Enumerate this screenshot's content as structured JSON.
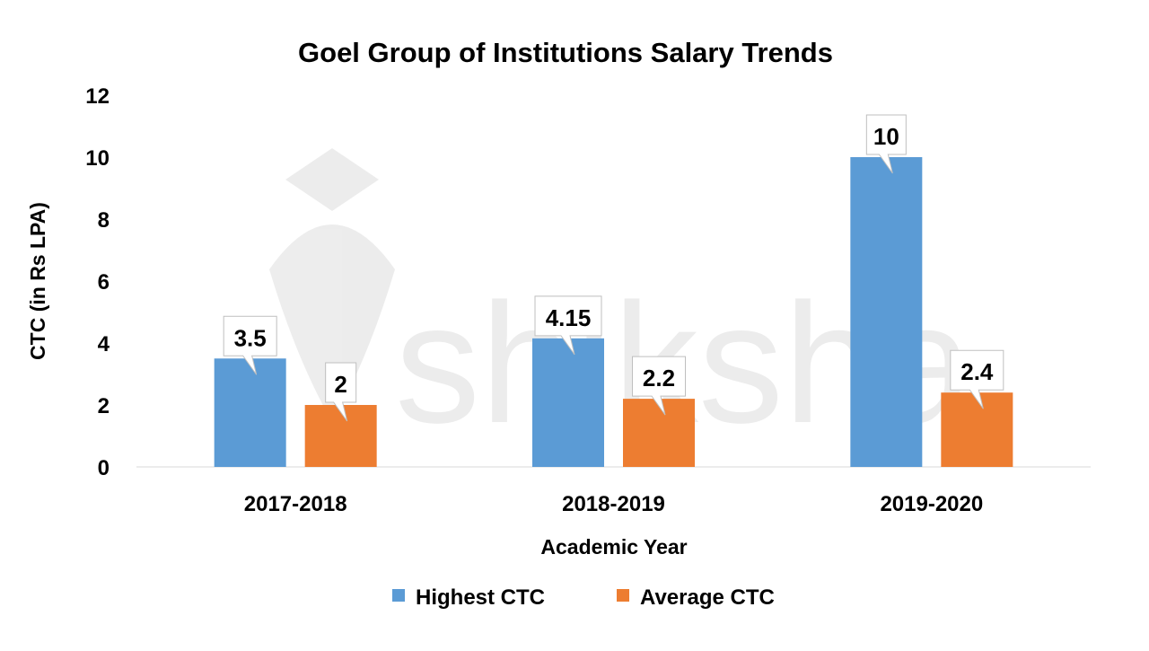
{
  "watermark": "shiksha",
  "chart_data": {
    "type": "bar",
    "title": "Goel Group of Institutions  Salary Trends",
    "xlabel": "Academic Year",
    "ylabel": "CTC (in Rs LPA)",
    "categories": [
      "2017-2018",
      "2018-2019",
      "2019-2020"
    ],
    "ylim": [
      0,
      12
    ],
    "yticks": [
      "0",
      "2",
      "4",
      "6",
      "8",
      "10",
      "12"
    ],
    "grid": false,
    "legend": "bottom",
    "series": [
      {
        "name": "Highest CTC",
        "color": "#5B9BD5",
        "values": [
          3.5,
          4.15,
          10
        ],
        "labels": [
          "3.5",
          "4.15",
          "10"
        ]
      },
      {
        "name": "Average CTC",
        "color": "#ED7D31",
        "values": [
          2,
          2.2,
          2.4
        ],
        "labels": [
          "2",
          "2.2",
          "2.4"
        ]
      }
    ]
  }
}
